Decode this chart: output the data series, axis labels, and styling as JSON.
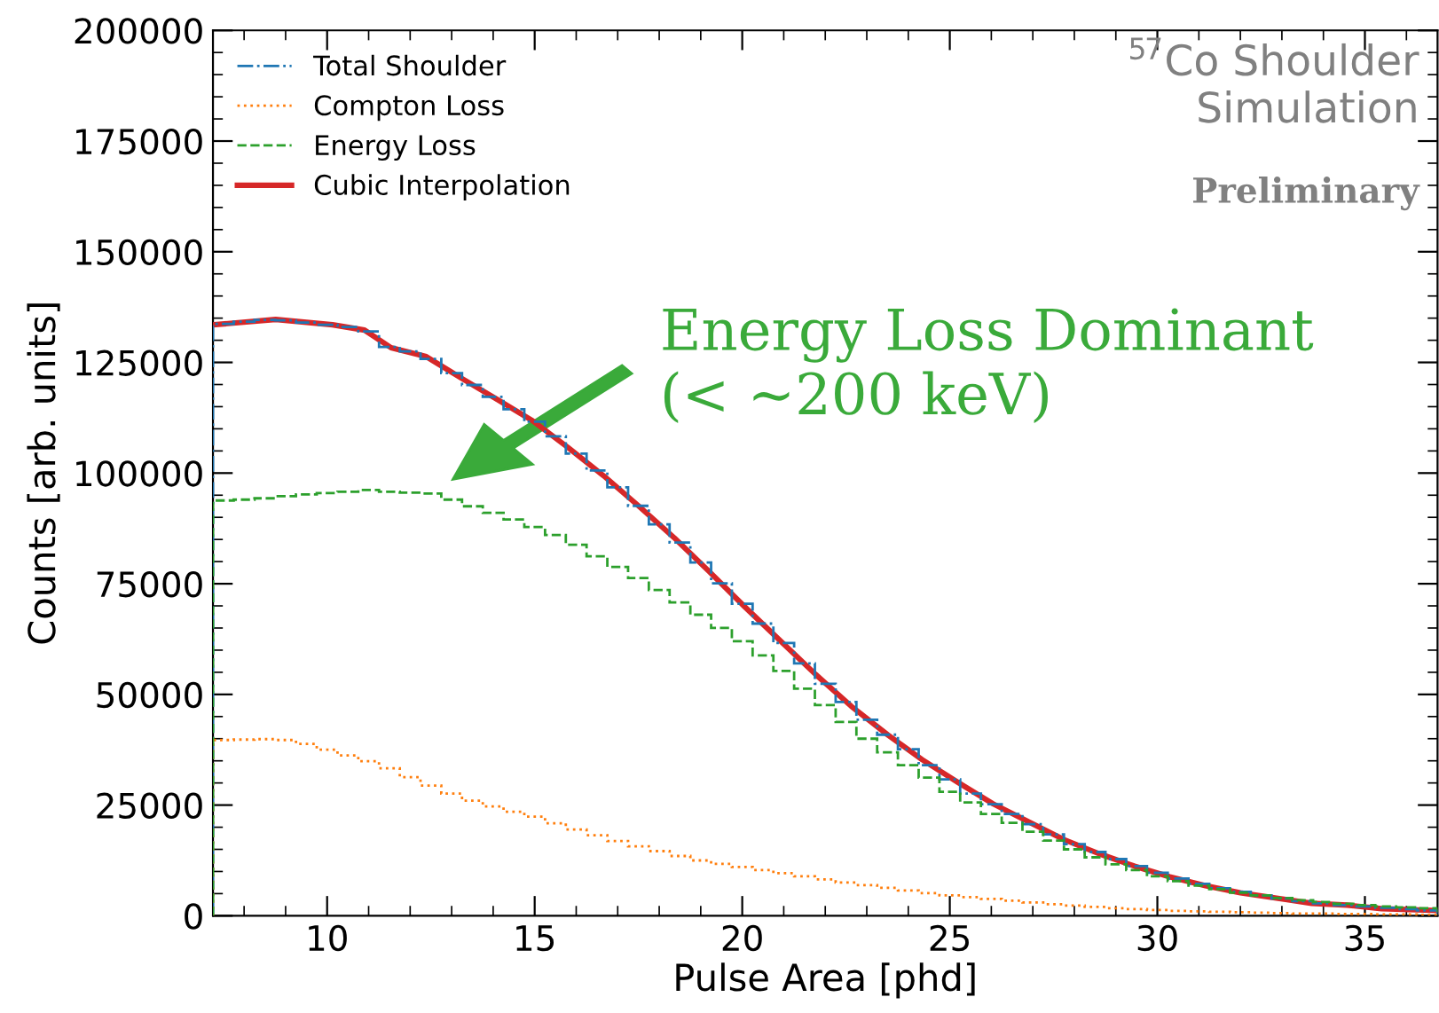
{
  "chart_data": {
    "type": "histogram",
    "xlabel": "Pulse Area [phd]",
    "ylabel": "Counts [arb. units]",
    "xlim": [
      7.25,
      36.75
    ],
    "xticks": [
      10,
      15,
      20,
      25,
      30,
      35
    ],
    "ylim": [
      0,
      200000
    ],
    "yticks": [
      0,
      25000,
      50000,
      75000,
      100000,
      125000,
      150000,
      175000,
      200000
    ],
    "grid": false,
    "legend": "top left",
    "bins": [
      7.25,
      7.75,
      8.25,
      8.75,
      9.25,
      9.75,
      10.25,
      10.75,
      11.25,
      11.75,
      12.25,
      12.75,
      13.25,
      13.75,
      14.25,
      14.75,
      15.25,
      15.75,
      16.25,
      16.75,
      17.25,
      17.75,
      18.25,
      18.75,
      19.25,
      19.75,
      20.25,
      20.75,
      21.25,
      21.75,
      22.25,
      22.75,
      23.25,
      23.75,
      24.25,
      24.75,
      25.25,
      25.75,
      26.25,
      26.75,
      27.25,
      27.75,
      28.25,
      28.75,
      29.25,
      29.75,
      30.25,
      30.75,
      31.25,
      31.75,
      32.25,
      32.75,
      33.25,
      33.75,
      34.25,
      34.75,
      35.25,
      35.75,
      36.25,
      36.75
    ],
    "series": [
      {
        "name": "Total Shoulder",
        "color": "#1f77b4",
        "line_style": "dashdot",
        "values": [
          133700,
          134200,
          134600,
          134500,
          134000,
          133500,
          133000,
          132000,
          128500,
          127500,
          125800,
          122600,
          119900,
          117200,
          114400,
          111600,
          108300,
          104400,
          100600,
          96800,
          92600,
          88400,
          84300,
          79800,
          75100,
          70500,
          66000,
          61600,
          57000,
          52400,
          48300,
          44300,
          40900,
          37600,
          34000,
          30800,
          27600,
          25200,
          23000,
          20700,
          18400,
          16200,
          14400,
          12800,
          11200,
          9700,
          8400,
          7200,
          6200,
          5400,
          4600,
          3900,
          3300,
          2800,
          2400,
          2100,
          1800,
          1500,
          1200
        ]
      },
      {
        "name": "Compton Loss",
        "color": "#ff7f0e",
        "line_style": "dotted",
        "values": [
          39700,
          39800,
          39900,
          39700,
          38800,
          37500,
          36200,
          34900,
          33300,
          31300,
          29400,
          27600,
          26000,
          24700,
          23500,
          22400,
          20900,
          19500,
          18200,
          16900,
          15700,
          14600,
          13500,
          12500,
          11700,
          11000,
          10300,
          9600,
          8900,
          8200,
          7500,
          6900,
          6300,
          5700,
          5100,
          4600,
          4200,
          3800,
          3400,
          3000,
          2600,
          2300,
          2000,
          1700,
          1500,
          1300,
          1100,
          1000,
          900,
          800,
          700,
          600,
          500,
          500,
          400,
          400,
          300,
          300,
          200
        ]
      },
      {
        "name": "Energy Loss",
        "color": "#2ca02c",
        "line_style": "dashed",
        "values": [
          93800,
          94000,
          94300,
          94800,
          95200,
          95500,
          95800,
          96200,
          95800,
          95600,
          95400,
          94000,
          92500,
          91000,
          89500,
          87800,
          86000,
          83800,
          81200,
          78800,
          76300,
          73600,
          70800,
          68000,
          65000,
          62000,
          58800,
          55300,
          51300,
          47600,
          43800,
          40000,
          36900,
          34000,
          31200,
          28000,
          25600,
          23000,
          21000,
          19000,
          17000,
          15000,
          13200,
          11600,
          10300,
          8900,
          7800,
          6800,
          6000,
          5200,
          4600,
          4000,
          3500,
          3100,
          2700,
          2400,
          2100,
          1900,
          1700
        ]
      },
      {
        "name": "Cubic Interpolation",
        "type": "line",
        "color": "#d62728",
        "line_style": "solid",
        "x": [
          7.27,
          8.76,
          10.13,
          10.9,
          11.54,
          12.39,
          13.24,
          14.1,
          14.95,
          15.8,
          16.66,
          17.5,
          18.36,
          19.2,
          20.07,
          20.92,
          21.77,
          22.63,
          23.5,
          24.33,
          25.2,
          26.04,
          26.9,
          27.75,
          28.6,
          29.45,
          30.3,
          31.16,
          32.0,
          32.87,
          33.72,
          34.57,
          35.4,
          36.7
        ],
        "values": [
          133500,
          134700,
          133500,
          132300,
          128300,
          126300,
          121400,
          116600,
          111800,
          105800,
          99400,
          92600,
          85400,
          77800,
          69700,
          62100,
          54500,
          47300,
          40900,
          35300,
          30100,
          25300,
          21200,
          17200,
          14000,
          11200,
          8800,
          6800,
          5200,
          4000,
          2800,
          2400,
          1600,
          1200
        ]
      }
    ],
    "annotations": [
      "Energy Loss Dominant\n(< ~200 keV)",
      "$^{57}$Co Shoulder\nSimulation",
      "Preliminary"
    ]
  }
}
